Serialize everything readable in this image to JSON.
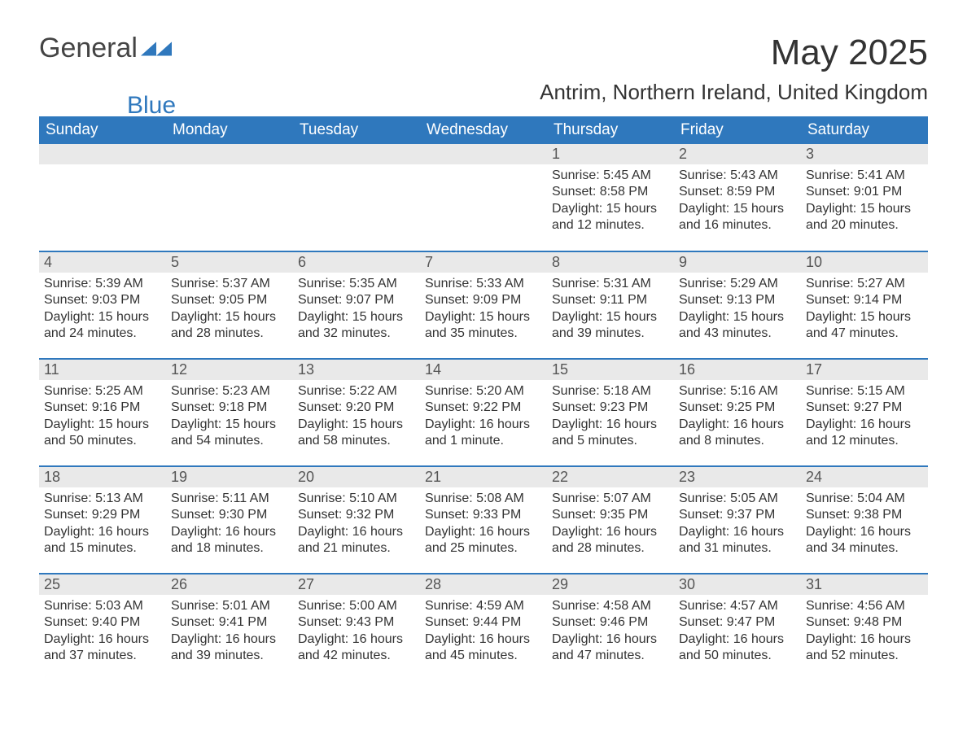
{
  "brand": {
    "word1": "General",
    "word2": "Blue",
    "accent_color": "#2f78bd",
    "text_color": "#444444"
  },
  "title": "May 2025",
  "subtitle": "Antrim, Northern Ireland, United Kingdom",
  "colors": {
    "header_bg": "#2f78bd",
    "header_fg": "#ffffff",
    "daynum_bg": "#e9e9e9",
    "body_fg": "#333333",
    "page_bg": "#ffffff"
  },
  "weekdays": [
    "Sunday",
    "Monday",
    "Tuesday",
    "Wednesday",
    "Thursday",
    "Friday",
    "Saturday"
  ],
  "layout": {
    "first_day_index": 4,
    "days_in_month": 31
  },
  "days": {
    "1": {
      "sunrise": "5:45 AM",
      "sunset": "8:58 PM",
      "daylight": "15 hours and 12 minutes."
    },
    "2": {
      "sunrise": "5:43 AM",
      "sunset": "8:59 PM",
      "daylight": "15 hours and 16 minutes."
    },
    "3": {
      "sunrise": "5:41 AM",
      "sunset": "9:01 PM",
      "daylight": "15 hours and 20 minutes."
    },
    "4": {
      "sunrise": "5:39 AM",
      "sunset": "9:03 PM",
      "daylight": "15 hours and 24 minutes."
    },
    "5": {
      "sunrise": "5:37 AM",
      "sunset": "9:05 PM",
      "daylight": "15 hours and 28 minutes."
    },
    "6": {
      "sunrise": "5:35 AM",
      "sunset": "9:07 PM",
      "daylight": "15 hours and 32 minutes."
    },
    "7": {
      "sunrise": "5:33 AM",
      "sunset": "9:09 PM",
      "daylight": "15 hours and 35 minutes."
    },
    "8": {
      "sunrise": "5:31 AM",
      "sunset": "9:11 PM",
      "daylight": "15 hours and 39 minutes."
    },
    "9": {
      "sunrise": "5:29 AM",
      "sunset": "9:13 PM",
      "daylight": "15 hours and 43 minutes."
    },
    "10": {
      "sunrise": "5:27 AM",
      "sunset": "9:14 PM",
      "daylight": "15 hours and 47 minutes."
    },
    "11": {
      "sunrise": "5:25 AM",
      "sunset": "9:16 PM",
      "daylight": "15 hours and 50 minutes."
    },
    "12": {
      "sunrise": "5:23 AM",
      "sunset": "9:18 PM",
      "daylight": "15 hours and 54 minutes."
    },
    "13": {
      "sunrise": "5:22 AM",
      "sunset": "9:20 PM",
      "daylight": "15 hours and 58 minutes."
    },
    "14": {
      "sunrise": "5:20 AM",
      "sunset": "9:22 PM",
      "daylight": "16 hours and 1 minute."
    },
    "15": {
      "sunrise": "5:18 AM",
      "sunset": "9:23 PM",
      "daylight": "16 hours and 5 minutes."
    },
    "16": {
      "sunrise": "5:16 AM",
      "sunset": "9:25 PM",
      "daylight": "16 hours and 8 minutes."
    },
    "17": {
      "sunrise": "5:15 AM",
      "sunset": "9:27 PM",
      "daylight": "16 hours and 12 minutes."
    },
    "18": {
      "sunrise": "5:13 AM",
      "sunset": "9:29 PM",
      "daylight": "16 hours and 15 minutes."
    },
    "19": {
      "sunrise": "5:11 AM",
      "sunset": "9:30 PM",
      "daylight": "16 hours and 18 minutes."
    },
    "20": {
      "sunrise": "5:10 AM",
      "sunset": "9:32 PM",
      "daylight": "16 hours and 21 minutes."
    },
    "21": {
      "sunrise": "5:08 AM",
      "sunset": "9:33 PM",
      "daylight": "16 hours and 25 minutes."
    },
    "22": {
      "sunrise": "5:07 AM",
      "sunset": "9:35 PM",
      "daylight": "16 hours and 28 minutes."
    },
    "23": {
      "sunrise": "5:05 AM",
      "sunset": "9:37 PM",
      "daylight": "16 hours and 31 minutes."
    },
    "24": {
      "sunrise": "5:04 AM",
      "sunset": "9:38 PM",
      "daylight": "16 hours and 34 minutes."
    },
    "25": {
      "sunrise": "5:03 AM",
      "sunset": "9:40 PM",
      "daylight": "16 hours and 37 minutes."
    },
    "26": {
      "sunrise": "5:01 AM",
      "sunset": "9:41 PM",
      "daylight": "16 hours and 39 minutes."
    },
    "27": {
      "sunrise": "5:00 AM",
      "sunset": "9:43 PM",
      "daylight": "16 hours and 42 minutes."
    },
    "28": {
      "sunrise": "4:59 AM",
      "sunset": "9:44 PM",
      "daylight": "16 hours and 45 minutes."
    },
    "29": {
      "sunrise": "4:58 AM",
      "sunset": "9:46 PM",
      "daylight": "16 hours and 47 minutes."
    },
    "30": {
      "sunrise": "4:57 AM",
      "sunset": "9:47 PM",
      "daylight": "16 hours and 50 minutes."
    },
    "31": {
      "sunrise": "4:56 AM",
      "sunset": "9:48 PM",
      "daylight": "16 hours and 52 minutes."
    }
  },
  "labels": {
    "sunrise": "Sunrise:",
    "sunset": "Sunset:",
    "daylight": "Daylight:"
  }
}
